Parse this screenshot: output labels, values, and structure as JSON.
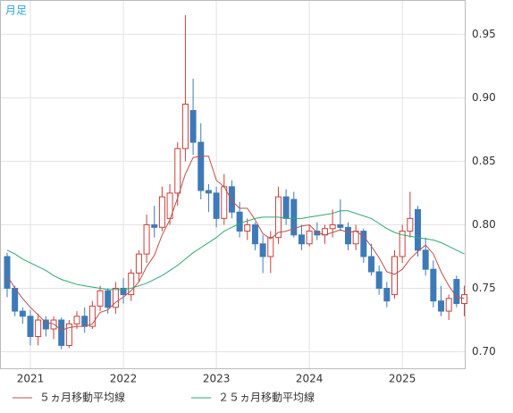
{
  "chart_data": {
    "type": "candlestick",
    "title": "月足",
    "categories": [
      null,
      null,
      null,
      "2021",
      null,
      null,
      null,
      null,
      null,
      null,
      null,
      null,
      null,
      null,
      null,
      "2022",
      null,
      null,
      null,
      null,
      null,
      null,
      null,
      null,
      null,
      null,
      null,
      "2023",
      null,
      null,
      null,
      null,
      null,
      null,
      null,
      null,
      null,
      null,
      null,
      "2024",
      null,
      null,
      null,
      null,
      null,
      null,
      null,
      null,
      null,
      null,
      null,
      "2025",
      null,
      null,
      null,
      null,
      null,
      null,
      null,
      null
    ],
    "open": [
      0.775,
      0.75,
      0.732,
      0.728,
      0.712,
      0.725,
      0.718,
      0.725,
      0.705,
      0.722,
      0.728,
      0.72,
      0.736,
      0.748,
      0.735,
      0.75,
      0.745,
      0.762,
      0.777,
      0.8,
      0.798,
      0.805,
      0.825,
      0.86,
      0.89,
      0.865,
      0.827,
      0.825,
      0.805,
      0.83,
      0.81,
      0.795,
      0.8,
      0.785,
      0.775,
      0.79,
      0.822,
      0.82,
      0.792,
      0.785,
      0.795,
      0.792,
      0.797,
      0.8,
      0.798,
      0.785,
      0.795,
      0.775,
      0.763,
      0.75,
      0.745,
      0.775,
      0.795,
      0.812,
      0.78,
      0.765,
      0.74,
      0.732,
      0.757,
      0.738
    ],
    "high": [
      0.778,
      0.752,
      0.735,
      0.733,
      0.73,
      0.728,
      0.728,
      0.727,
      0.725,
      0.732,
      0.735,
      0.74,
      0.752,
      0.75,
      0.755,
      0.758,
      0.765,
      0.78,
      0.808,
      0.815,
      0.83,
      0.832,
      0.865,
      0.965,
      0.915,
      0.88,
      0.832,
      0.83,
      0.84,
      0.835,
      0.818,
      0.805,
      0.802,
      0.792,
      0.795,
      0.83,
      0.828,
      0.826,
      0.8,
      0.8,
      0.802,
      0.8,
      0.812,
      0.82,
      0.802,
      0.8,
      0.797,
      0.785,
      0.768,
      0.755,
      0.78,
      0.8,
      0.826,
      0.815,
      0.79,
      0.772,
      0.752,
      0.745,
      0.76,
      0.752
    ],
    "low": [
      0.743,
      0.728,
      0.722,
      0.705,
      0.705,
      0.712,
      0.71,
      0.702,
      0.703,
      0.718,
      0.715,
      0.718,
      0.732,
      0.73,
      0.73,
      0.738,
      0.74,
      0.755,
      0.77,
      0.79,
      0.795,
      0.8,
      0.815,
      0.85,
      0.855,
      0.82,
      0.81,
      0.798,
      0.8,
      0.805,
      0.79,
      0.788,
      0.78,
      0.762,
      0.762,
      0.785,
      0.8,
      0.79,
      0.78,
      0.783,
      0.788,
      0.785,
      0.79,
      0.795,
      0.78,
      0.78,
      0.77,
      0.76,
      0.745,
      0.735,
      0.742,
      0.77,
      0.79,
      0.775,
      0.76,
      0.735,
      0.728,
      0.725,
      0.735,
      0.728
    ],
    "close": [
      0.75,
      0.732,
      0.728,
      0.712,
      0.725,
      0.718,
      0.725,
      0.705,
      0.722,
      0.728,
      0.72,
      0.736,
      0.748,
      0.735,
      0.75,
      0.745,
      0.762,
      0.777,
      0.8,
      0.798,
      0.822,
      0.825,
      0.86,
      0.895,
      0.865,
      0.827,
      0.825,
      0.805,
      0.83,
      0.81,
      0.795,
      0.8,
      0.785,
      0.775,
      0.79,
      0.822,
      0.805,
      0.792,
      0.785,
      0.795,
      0.792,
      0.797,
      0.8,
      0.798,
      0.785,
      0.795,
      0.775,
      0.763,
      0.75,
      0.74,
      0.775,
      0.795,
      0.805,
      0.78,
      0.765,
      0.74,
      0.732,
      0.742,
      0.738,
      0.745
    ],
    "up_color": "#c9403a",
    "down_color": "#3f7ab8",
    "series": [
      {
        "name": "５ヵ月移動平均線",
        "color": "#c0504d",
        "values": [
          0.76,
          0.75,
          0.742,
          0.735,
          0.729,
          0.723,
          0.722,
          0.717,
          0.719,
          0.72,
          0.72,
          0.722,
          0.731,
          0.733,
          0.739,
          0.743,
          0.748,
          0.755,
          0.767,
          0.776,
          0.792,
          0.804,
          0.821,
          0.84,
          0.853,
          0.854,
          0.854,
          0.835,
          0.83,
          0.819,
          0.813,
          0.813,
          0.804,
          0.793,
          0.789,
          0.794,
          0.795,
          0.797,
          0.799,
          0.8,
          0.794,
          0.792,
          0.794,
          0.796,
          0.794,
          0.795,
          0.791,
          0.783,
          0.774,
          0.763,
          0.761,
          0.765,
          0.773,
          0.779,
          0.784,
          0.777,
          0.763,
          0.752,
          0.743,
          0.742
        ]
      },
      {
        "name": "２５ヵ月移動平均線",
        "color": "#2eaa6e",
        "values": [
          0.78,
          0.777,
          0.773,
          0.77,
          0.767,
          0.764,
          0.76,
          0.757,
          0.755,
          0.753,
          0.752,
          0.751,
          0.75,
          0.749,
          0.749,
          0.749,
          0.75,
          0.752,
          0.754,
          0.757,
          0.76,
          0.764,
          0.768,
          0.773,
          0.778,
          0.782,
          0.786,
          0.79,
          0.795,
          0.798,
          0.801,
          0.803,
          0.805,
          0.806,
          0.806,
          0.806,
          0.805,
          0.805,
          0.805,
          0.806,
          0.807,
          0.808,
          0.809,
          0.811,
          0.811,
          0.809,
          0.807,
          0.805,
          0.801,
          0.797,
          0.794,
          0.792,
          0.791,
          0.79,
          0.789,
          0.788,
          0.786,
          0.783,
          0.78,
          0.777
        ]
      }
    ],
    "ylim": [
      0.687,
      0.977
    ],
    "yticks": [
      {
        "value": 0.7,
        "label": "0.70"
      },
      0.75,
      {
        "value": 0.8,
        "label": "0.80"
      },
      0.85,
      {
        "value": 0.9,
        "label": "0.90"
      },
      0.95
    ],
    "grid": true
  }
}
